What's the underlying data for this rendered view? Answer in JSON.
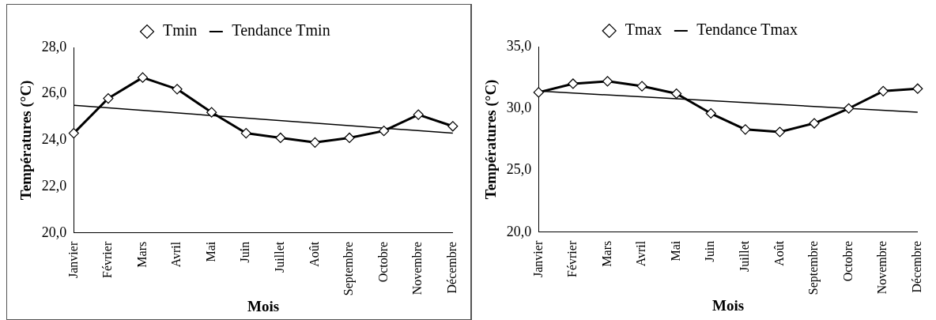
{
  "chart_data": [
    {
      "type": "line",
      "xlabel": "Mois",
      "ylabel": "Températures (°C)",
      "categories": [
        "Janvier",
        "Février",
        "Mars",
        "Avril",
        "Mai",
        "Juin",
        "Juillet",
        "Août",
        "Septembre",
        "Octobre",
        "Novembre",
        "Décembre"
      ],
      "series": [
        {
          "name": "Tmin",
          "color": "#000000",
          "marker": "diamond",
          "values": [
            24.3,
            25.8,
            26.7,
            26.2,
            25.2,
            24.3,
            24.1,
            23.9,
            24.1,
            24.4,
            25.1,
            24.6
          ]
        },
        {
          "name": "Tendance Tmin",
          "color": "#000000",
          "marker": "none",
          "values": [
            25.5,
            null,
            null,
            null,
            null,
            null,
            null,
            null,
            null,
            null,
            null,
            24.3
          ]
        }
      ],
      "ylim": [
        20,
        28
      ],
      "yticks": [
        {
          "value": 20,
          "label": "20,0"
        },
        {
          "value": 22,
          "label": "22,0"
        },
        {
          "value": 24,
          "label": "24,0"
        },
        {
          "value": 26,
          "label": "26,0"
        },
        {
          "value": 28,
          "label": "28,0"
        }
      ],
      "grid": false,
      "legend": "top"
    },
    {
      "type": "line",
      "xlabel": "Mois",
      "ylabel": "Températures (°C)",
      "categories": [
        "Janvier",
        "Février",
        "Mars",
        "Avril",
        "Mai",
        "Juin",
        "Juillet",
        "Août",
        "Septembre",
        "Octobre",
        "Novembre",
        "Décembre"
      ],
      "series": [
        {
          "name": "Tmax",
          "color": "#000000",
          "marker": "diamond",
          "values": [
            31.3,
            32.0,
            32.2,
            31.8,
            31.2,
            29.6,
            28.3,
            28.1,
            28.8,
            30.0,
            31.4,
            31.6
          ]
        },
        {
          "name": "Tendance Tmax",
          "color": "#000000",
          "marker": "none",
          "values": [
            31.4,
            null,
            null,
            null,
            null,
            null,
            null,
            null,
            null,
            null,
            null,
            29.7
          ]
        }
      ],
      "ylim": [
        20,
        35
      ],
      "yticks": [
        {
          "value": 20,
          "label": "20,0"
        },
        {
          "value": 25,
          "label": "25,0"
        },
        {
          "value": 30,
          "label": "30,0"
        },
        {
          "value": 35,
          "label": "35,0"
        }
      ],
      "grid": false,
      "legend": "top"
    }
  ]
}
